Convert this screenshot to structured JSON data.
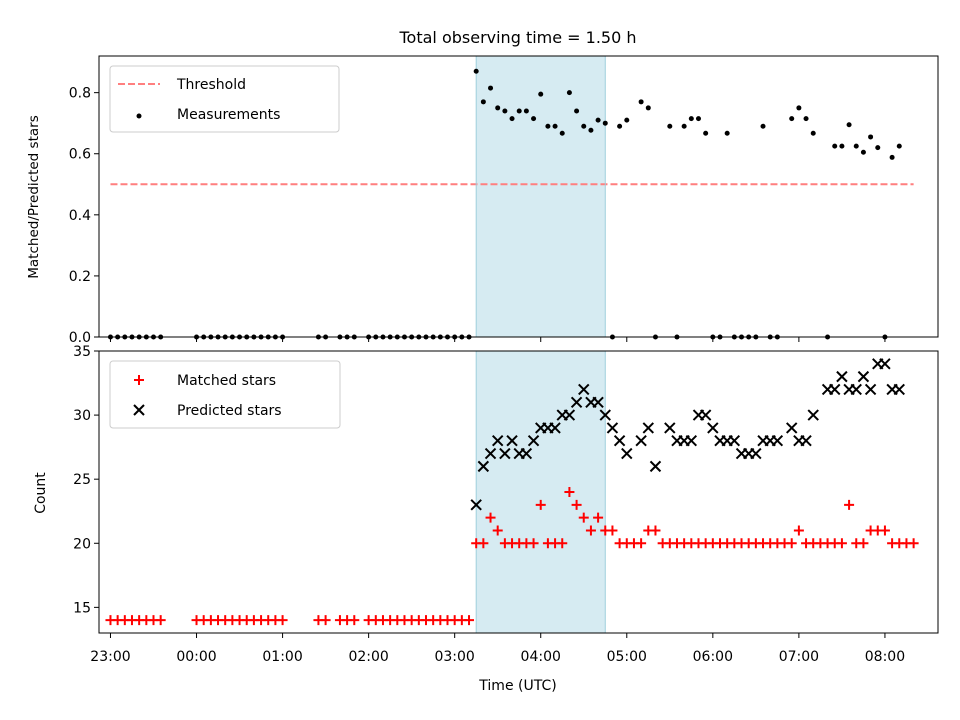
{
  "chart_data": [
    {
      "type": "scatter",
      "title": "Total observing time = 1.50 h",
      "xlabel": "",
      "ylabel": "Matched/Predicted stars",
      "xlim": [
        "22:52",
        "08:37"
      ],
      "ylim": [
        0,
        0.92
      ],
      "yticks": [
        0.0,
        0.2,
        0.4,
        0.6,
        0.8
      ],
      "ytick_labels": [
        "0.0",
        "0.2",
        "0.4",
        "0.6",
        "0.8"
      ],
      "shaded_span": [
        "03:15",
        "04:45"
      ],
      "shade_color": "#add8e6",
      "legend_position": "upper left",
      "series": [
        {
          "name": "Threshold",
          "style": "dashed line",
          "color": "#ff7f7f",
          "x": [
            "23:00",
            "08:20"
          ],
          "y": [
            0.5,
            0.5
          ]
        },
        {
          "name": "Measurements",
          "style": "dots",
          "color": "#000000",
          "x": [
            "23:00",
            "23:05",
            "23:10",
            "23:15",
            "23:20",
            "23:25",
            "23:30",
            "23:35",
            "00:00",
            "00:05",
            "00:10",
            "00:15",
            "00:20",
            "00:25",
            "00:30",
            "00:35",
            "00:40",
            "00:45",
            "00:50",
            "00:55",
            "01:00",
            "01:25",
            "01:30",
            "01:40",
            "01:45",
            "01:50",
            "02:00",
            "02:05",
            "02:10",
            "02:15",
            "02:20",
            "02:25",
            "02:30",
            "02:35",
            "02:40",
            "02:45",
            "02:50",
            "02:55",
            "03:00",
            "03:05",
            "03:10",
            "03:15",
            "03:20",
            "03:25",
            "03:30",
            "03:35",
            "03:40",
            "03:45",
            "03:50",
            "03:55",
            "04:00",
            "04:05",
            "04:10",
            "04:15",
            "04:20",
            "04:25",
            "04:30",
            "04:35",
            "04:40",
            "04:45",
            "04:50",
            "04:55",
            "05:00",
            "05:10",
            "05:15",
            "05:20",
            "05:30",
            "05:35",
            "05:40",
            "05:45",
            "05:50",
            "05:55",
            "06:00",
            "06:05",
            "06:10",
            "06:15",
            "06:20",
            "06:25",
            "06:30",
            "06:35",
            "06:40",
            "06:45",
            "06:55",
            "07:00",
            "07:05",
            "07:10",
            "07:20",
            "07:25",
            "07:30",
            "07:35",
            "07:40",
            "07:45",
            "07:50",
            "07:55",
            "08:00",
            "08:05",
            "08:10"
          ],
          "y": [
            0,
            0,
            0,
            0,
            0,
            0,
            0,
            0,
            0,
            0,
            0,
            0,
            0,
            0,
            0,
            0,
            0,
            0,
            0,
            0,
            0,
            0,
            0,
            0,
            0,
            0,
            0,
            0,
            0,
            0,
            0,
            0,
            0,
            0,
            0,
            0,
            0,
            0,
            0,
            0,
            0,
            0.87,
            0.77,
            0.815,
            0.75,
            0.74,
            0.715,
            0.74,
            0.74,
            0.715,
            0.795,
            0.69,
            0.69,
            0.667,
            0.8,
            0.74,
            0.69,
            0.677,
            0.71,
            0.7,
            0,
            0.69,
            0.71,
            0.77,
            0.75,
            0,
            0.69,
            0,
            0.69,
            0.715,
            0.715,
            0.667,
            0,
            0,
            0.667,
            0,
            0,
            0,
            0,
            0.69,
            0,
            0,
            0.715,
            0.75,
            0.715,
            0.667,
            0,
            0.625,
            0.625,
            0.695,
            0.625,
            0.605,
            0.655,
            0.62,
            0,
            0.588,
            0.625
          ]
        }
      ]
    },
    {
      "type": "scatter",
      "title": "",
      "xlabel": "Time (UTC)",
      "ylabel": "Count",
      "xlim": [
        "22:52",
        "08:37"
      ],
      "ylim": [
        13,
        35
      ],
      "yticks": [
        15,
        20,
        25,
        30,
        35
      ],
      "ytick_labels": [
        "15",
        "20",
        "25",
        "30",
        "35"
      ],
      "xticks": [
        "23:00",
        "00:00",
        "01:00",
        "02:00",
        "03:00",
        "04:00",
        "05:00",
        "06:00",
        "07:00",
        "08:00"
      ],
      "xtick_labels": [
        "23:00",
        "00:00",
        "01:00",
        "02:00",
        "03:00",
        "04:00",
        "05:00",
        "06:00",
        "07:00",
        "08:00"
      ],
      "shaded_span": [
        "03:15",
        "04:45"
      ],
      "shade_color": "#add8e6",
      "legend_position": "upper left",
      "series": [
        {
          "name": "Matched stars",
          "marker": "+",
          "color": "#ff0000",
          "x": [
            "23:00",
            "23:05",
            "23:10",
            "23:15",
            "23:20",
            "23:25",
            "23:30",
            "23:35",
            "00:00",
            "00:05",
            "00:10",
            "00:15",
            "00:20",
            "00:25",
            "00:30",
            "00:35",
            "00:40",
            "00:45",
            "00:50",
            "00:55",
            "01:00",
            "01:25",
            "01:30",
            "01:40",
            "01:45",
            "01:50",
            "02:00",
            "02:05",
            "02:10",
            "02:15",
            "02:20",
            "02:25",
            "02:30",
            "02:35",
            "02:40",
            "02:45",
            "02:50",
            "02:55",
            "03:00",
            "03:05",
            "03:10",
            "03:15",
            "03:20",
            "03:25",
            "03:30",
            "03:35",
            "03:40",
            "03:45",
            "03:50",
            "03:55",
            "04:00",
            "04:05",
            "04:10",
            "04:15",
            "04:20",
            "04:25",
            "04:30",
            "04:35",
            "04:40",
            "04:45",
            "04:50",
            "04:55",
            "05:00",
            "05:05",
            "05:10",
            "05:15",
            "05:20",
            "05:25",
            "05:30",
            "05:35",
            "05:40",
            "05:45",
            "05:50",
            "05:55",
            "06:00",
            "06:05",
            "06:10",
            "06:15",
            "06:20",
            "06:25",
            "06:30",
            "06:35",
            "06:40",
            "06:45",
            "06:50",
            "06:55",
            "07:00",
            "07:05",
            "07:10",
            "07:15",
            "07:20",
            "07:25",
            "07:30",
            "07:35",
            "07:40",
            "07:45",
            "07:50",
            "07:55",
            "08:00",
            "08:05",
            "08:10",
            "08:15",
            "08:20"
          ],
          "y": [
            14,
            14,
            14,
            14,
            14,
            14,
            14,
            14,
            14,
            14,
            14,
            14,
            14,
            14,
            14,
            14,
            14,
            14,
            14,
            14,
            14,
            14,
            14,
            14,
            14,
            14,
            14,
            14,
            14,
            14,
            14,
            14,
            14,
            14,
            14,
            14,
            14,
            14,
            14,
            14,
            14,
            20,
            20,
            22,
            21,
            20,
            20,
            20,
            20,
            20,
            23,
            20,
            20,
            20,
            24,
            23,
            22,
            21,
            22,
            21,
            21,
            20,
            20,
            20,
            20,
            21,
            21,
            20,
            20,
            20,
            20,
            20,
            20,
            20,
            20,
            20,
            20,
            20,
            20,
            20,
            20,
            20,
            20,
            20,
            20,
            20,
            21,
            20,
            20,
            20,
            20,
            20,
            20,
            23,
            20,
            20,
            21,
            21,
            21,
            20,
            20,
            20,
            20
          ]
        },
        {
          "name": "Predicted stars",
          "marker": "x",
          "color": "#000000",
          "x": [
            "03:15",
            "03:20",
            "03:25",
            "03:30",
            "03:35",
            "03:40",
            "03:45",
            "03:50",
            "03:55",
            "04:00",
            "04:05",
            "04:10",
            "04:15",
            "04:20",
            "04:25",
            "04:30",
            "04:35",
            "04:40",
            "04:45",
            "04:50",
            "04:55",
            "05:00",
            "05:10",
            "05:15",
            "05:20",
            "05:30",
            "05:35",
            "05:40",
            "05:45",
            "05:50",
            "05:55",
            "06:00",
            "06:05",
            "06:10",
            "06:15",
            "06:20",
            "06:25",
            "06:30",
            "06:35",
            "06:40",
            "06:45",
            "06:55",
            "07:00",
            "07:05",
            "07:10",
            "07:20",
            "07:25",
            "07:30",
            "07:35",
            "07:40",
            "07:45",
            "07:50",
            "07:55",
            "08:00",
            "08:05",
            "08:10"
          ],
          "y": [
            23,
            26,
            27,
            28,
            27,
            28,
            27,
            27,
            28,
            29,
            29,
            29,
            30,
            30,
            31,
            32,
            31,
            31,
            30,
            29,
            28,
            27,
            28,
            29,
            26,
            29,
            28,
            28,
            28,
            30,
            30,
            29,
            28,
            28,
            28,
            27,
            27,
            27,
            28,
            28,
            28,
            29,
            28,
            28,
            30,
            32,
            32,
            33,
            32,
            32,
            33,
            32,
            34,
            34,
            32,
            32
          ]
        }
      ]
    }
  ]
}
